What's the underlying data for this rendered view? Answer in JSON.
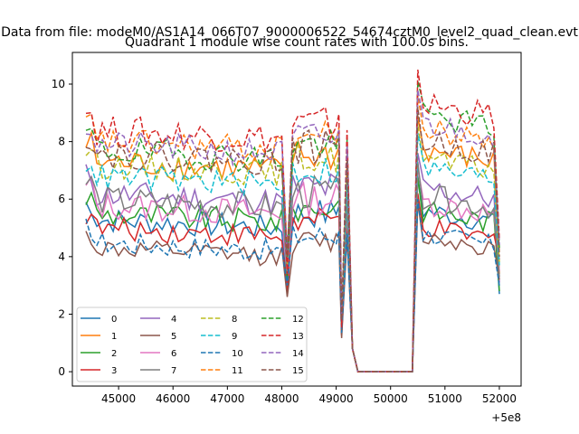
{
  "suptitle": "Data from file: modeM0/AS1A14_066T07_9000006522_54674cztM0_level2_quad_clean.evt",
  "chart_data": {
    "type": "line",
    "title": "Quadrant 1 module wise count rates with 100.0s bins.",
    "xlabel": "",
    "ylabel": "",
    "x_offset_label": "+5e8",
    "xlim": [
      44150,
      52400
    ],
    "ylim": [
      -0.5,
      11.1
    ],
    "xticks": [
      45000,
      46000,
      47000,
      48000,
      49000,
      50000,
      51000,
      52000
    ],
    "xtick_labels": [
      "45000",
      "46000",
      "47000",
      "48000",
      "49000",
      "50000",
      "51000",
      "52000"
    ],
    "yticks": [
      0,
      2,
      4,
      6,
      8,
      10
    ],
    "ytick_labels": [
      "0",
      "2",
      "4",
      "6",
      "8",
      "10"
    ],
    "grid": false,
    "legend_position": "lower-left",
    "legend_columns": 4,
    "series": [
      {
        "name": "0",
        "color": "#1f77b4",
        "style": "solid",
        "base": 5.3,
        "amp": 0.45,
        "peak": 6.8,
        "dip": 2.9,
        "end": 2.7
      },
      {
        "name": "1",
        "color": "#ff7f0e",
        "style": "solid",
        "base": 7.3,
        "amp": 0.5,
        "peak": 8.9,
        "dip": 3.6,
        "end": 3.4
      },
      {
        "name": "2",
        "color": "#2ca02c",
        "style": "solid",
        "base": 5.5,
        "amp": 0.45,
        "peak": 6.8,
        "dip": 3.2,
        "end": 2.8
      },
      {
        "name": "3",
        "color": "#d62728",
        "style": "solid",
        "base": 5.0,
        "amp": 0.4,
        "peak": 6.2,
        "dip": 2.8,
        "end": 3.9
      },
      {
        "name": "4",
        "color": "#9467bd",
        "style": "solid",
        "base": 6.2,
        "amp": 0.5,
        "peak": 7.6,
        "dip": 3.8,
        "end": 3.1
      },
      {
        "name": "5",
        "color": "#8c564b",
        "style": "solid",
        "base": 4.3,
        "amp": 0.35,
        "peak": 5.9,
        "dip": 2.6,
        "end": 3.2
      },
      {
        "name": "6",
        "color": "#e377c2",
        "style": "solid",
        "base": 5.8,
        "amp": 0.5,
        "peak": 7.1,
        "dip": 3.4,
        "end": 3.5
      },
      {
        "name": "7",
        "color": "#7f7f7f",
        "style": "solid",
        "base": 6.0,
        "amp": 0.5,
        "peak": 7.3,
        "dip": 3.5,
        "end": 3.3
      },
      {
        "name": "8",
        "color": "#bcbd22",
        "style": "dashed",
        "base": 7.2,
        "amp": 0.45,
        "peak": 8.6,
        "dip": 3.7,
        "end": 3.8
      },
      {
        "name": "9",
        "color": "#17becf",
        "style": "dashed",
        "base": 6.8,
        "amp": 0.45,
        "peak": 8.3,
        "dip": 3.9,
        "end": 3.7
      },
      {
        "name": "10",
        "color": "#1f77b4",
        "style": "dashed",
        "base": 4.5,
        "amp": 0.4,
        "peak": 6.0,
        "dip": 3.0,
        "end": 3.0
      },
      {
        "name": "11",
        "color": "#ff7f0e",
        "style": "dashed",
        "base": 8.0,
        "amp": 0.5,
        "peak": 9.6,
        "dip": 4.2,
        "end": 4.1
      },
      {
        "name": "12",
        "color": "#2ca02c",
        "style": "dashed",
        "base": 7.7,
        "amp": 0.5,
        "peak": 10.1,
        "dip": 4.0,
        "end": 4.3
      },
      {
        "name": "13",
        "color": "#d62728",
        "style": "dashed",
        "base": 8.4,
        "amp": 0.55,
        "peak": 10.5,
        "dip": 3.4,
        "end": 4.6
      },
      {
        "name": "14",
        "color": "#9467bd",
        "style": "dashed",
        "base": 7.9,
        "amp": 0.5,
        "peak": 9.8,
        "dip": 4.1,
        "end": 4.4
      },
      {
        "name": "15",
        "color": "#8c564b",
        "style": "dashed",
        "base": 7.6,
        "amp": 0.5,
        "peak": 9.2,
        "dip": 4.0,
        "end": 4.0
      }
    ]
  }
}
